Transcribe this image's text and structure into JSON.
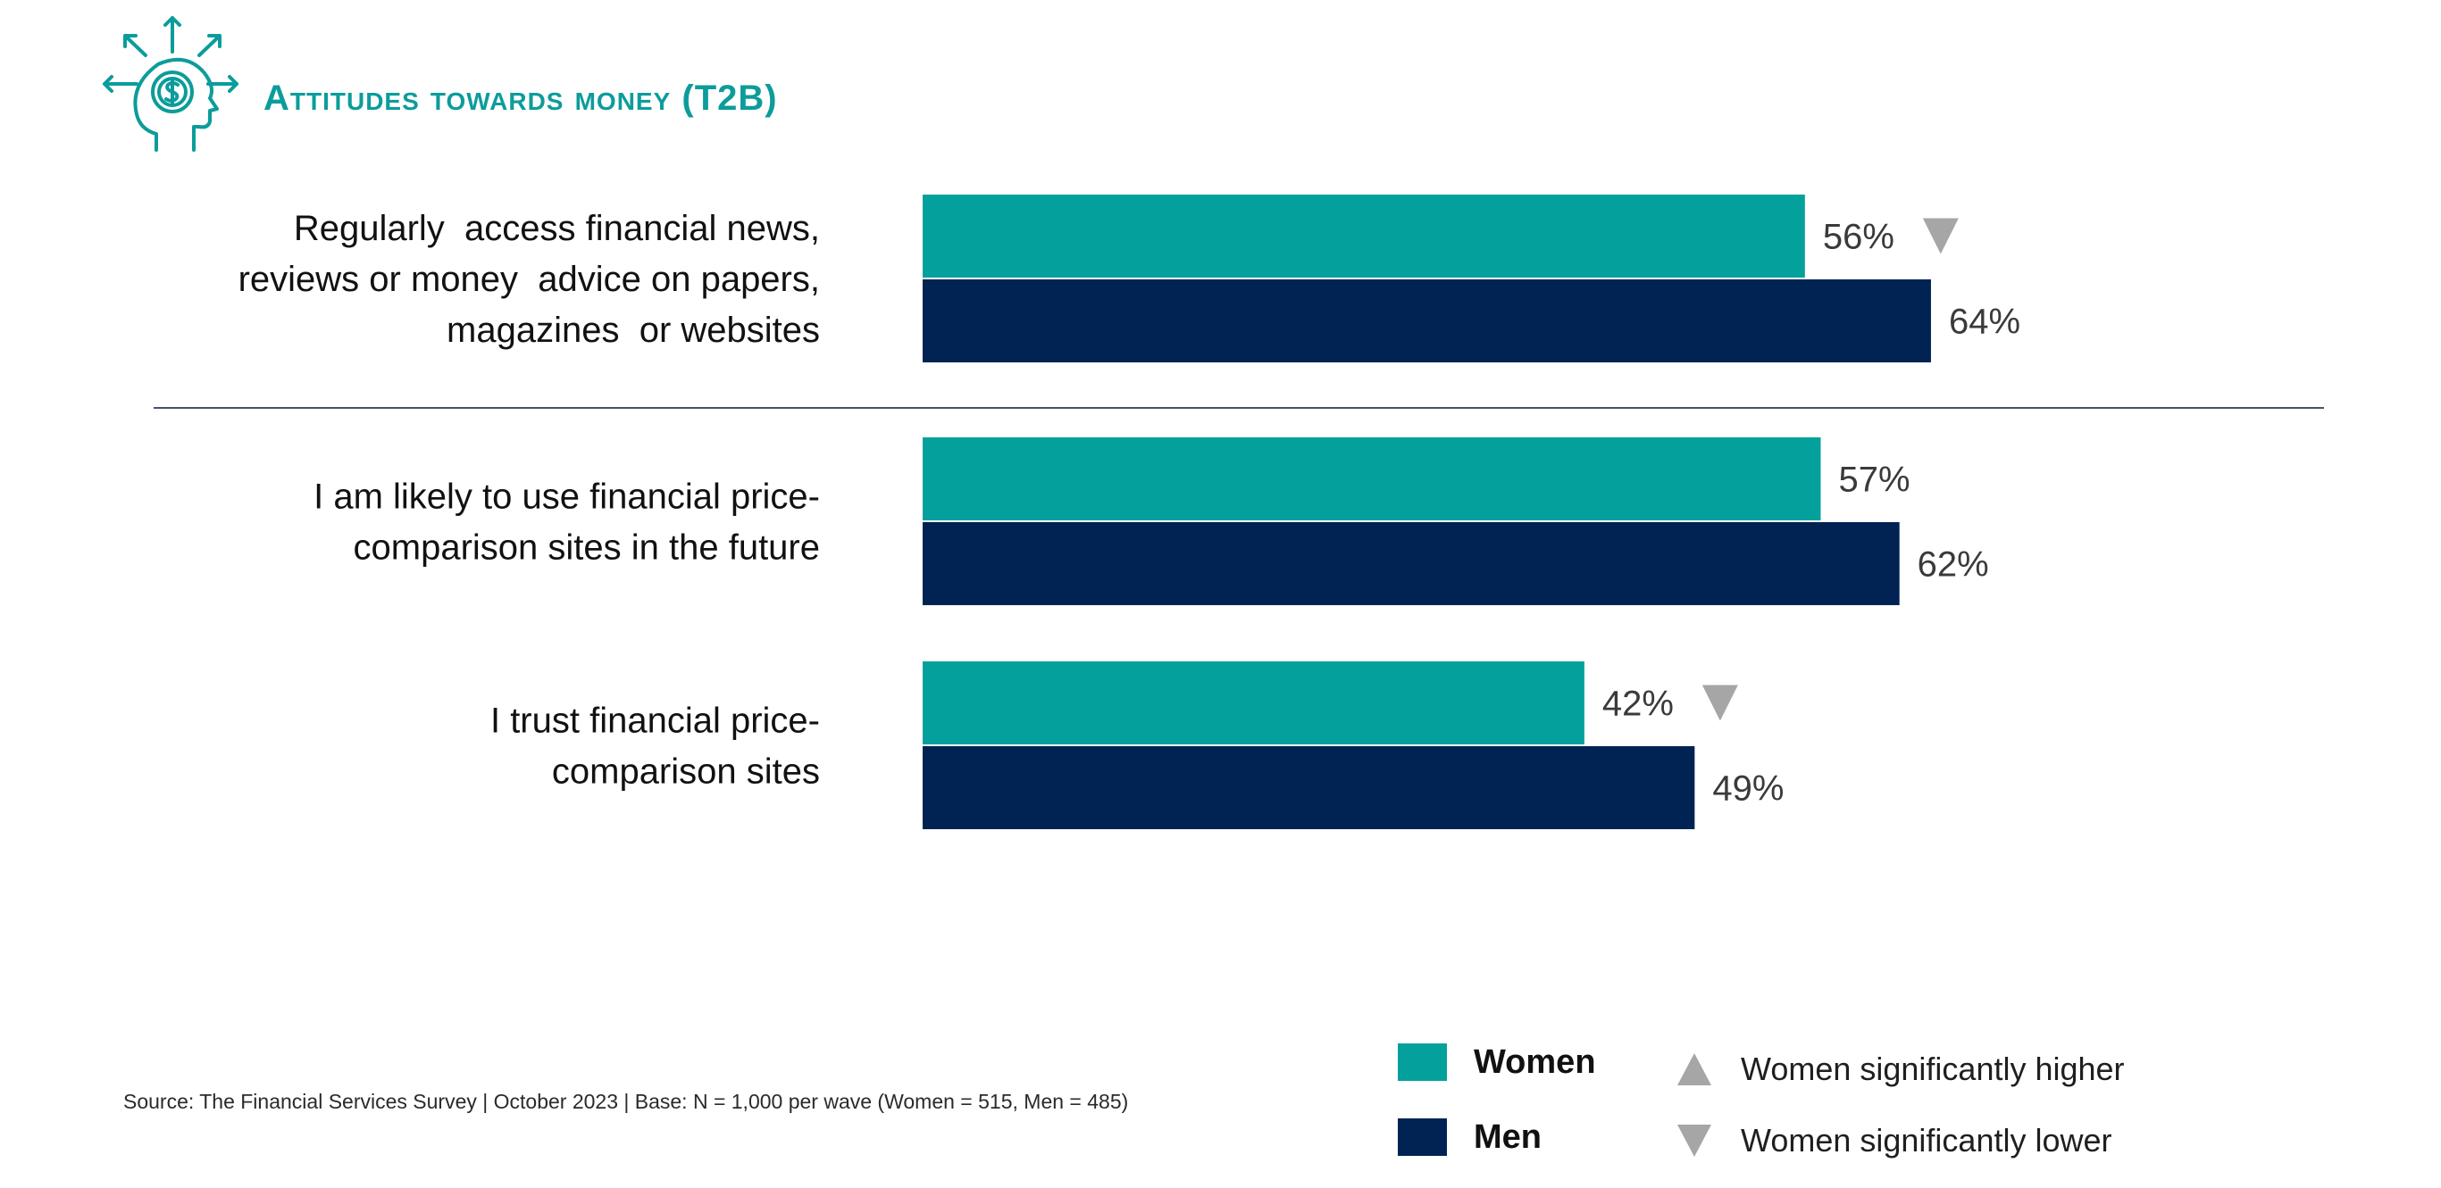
{
  "header": {
    "title": "Attitudes towards money (T2B)",
    "icon": "head-money-idea-icon"
  },
  "colors": {
    "women": "#04a19c",
    "men": "#002353",
    "accent": "#0c9c9b",
    "marker": "#a6a6a6",
    "divider": "#44546a"
  },
  "chart_data": {
    "type": "bar",
    "orientation": "horizontal",
    "categories": [
      [
        "Regularly  access financial news,",
        "reviews or money  advice on papers,",
        "magazines  or websites"
      ],
      [
        "I am likely to use financial price-",
        "comparison sites in the future"
      ],
      [
        "I trust financial price-",
        "comparison sites"
      ]
    ],
    "series": [
      {
        "name": "Women",
        "values": [
          56,
          57,
          42
        ],
        "labels": [
          "56%",
          "57%",
          "42%"
        ],
        "sig": [
          "lower",
          "",
          "lower"
        ]
      },
      {
        "name": "Men",
        "values": [
          64,
          62,
          49
        ],
        "labels": [
          "64%",
          "62%",
          "49%"
        ]
      }
    ],
    "xlim": [
      0,
      100
    ],
    "grid": false,
    "legend_position": "bottom-right"
  },
  "legend": {
    "women_label": "Women",
    "men_label": "Men",
    "higher_label": "Women significantly higher",
    "lower_label": "Women significantly lower"
  },
  "footer": {
    "source": "Source: The Financial Services Survey  | October 2023 | Base: N = 1,000 per wave (Women = 515, Men = 485)"
  }
}
